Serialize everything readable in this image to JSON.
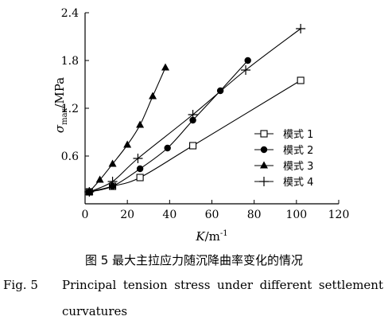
{
  "chart_data": {
    "type": "line",
    "ylabel_symbol": "σ",
    "ylabel_sub": "max",
    "ylabel_unit": "/MPa",
    "xlabel_symbol": "K",
    "xlabel_unit": "/m",
    "xlabel_sup": "-1",
    "xlim": [
      0,
      120
    ],
    "ylim": [
      0,
      2.4
    ],
    "xticks": [
      "0",
      "20",
      "40",
      "60",
      "80",
      "100",
      "120"
    ],
    "yticks": [
      "0.6",
      "1.2",
      "1.8",
      "2.4"
    ],
    "grid": false,
    "legend_position": "right-middle",
    "series": [
      {
        "name": "模式 1",
        "marker": "square-open",
        "x": [
          2,
          13,
          26,
          51,
          102
        ],
        "y": [
          0.15,
          0.22,
          0.33,
          0.73,
          1.55
        ]
      },
      {
        "name": "模式 2",
        "marker": "circle-filled",
        "x": [
          2,
          13,
          26,
          39,
          51,
          64,
          77
        ],
        "y": [
          0.15,
          0.22,
          0.44,
          0.7,
          1.05,
          1.42,
          1.8
        ]
      },
      {
        "name": "模式 3",
        "marker": "triangle-filled",
        "x": [
          2,
          7,
          13,
          20,
          26,
          32,
          38
        ],
        "y": [
          0.15,
          0.3,
          0.5,
          0.74,
          0.99,
          1.35,
          1.71
        ]
      },
      {
        "name": "模式 4",
        "marker": "plus",
        "x": [
          2,
          13,
          25,
          51,
          76,
          102
        ],
        "y": [
          0.15,
          0.28,
          0.57,
          1.12,
          1.68,
          2.2
        ]
      }
    ]
  },
  "captions": {
    "cn": "图 5    最大主拉应力随沉降曲率变化的情况",
    "en_label": "Fig. 5",
    "en_line1": "Principal tension stress under different settlement",
    "en_line2": "curvatures"
  }
}
